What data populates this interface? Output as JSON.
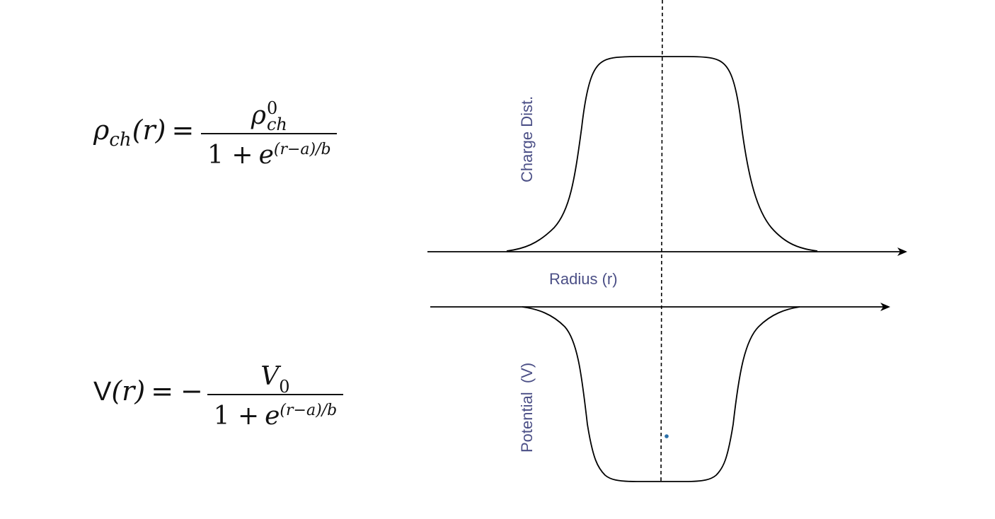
{
  "formulas": {
    "charge": {
      "lhs_symbol": "ρ",
      "lhs_subscript": "ch",
      "lhs_argument": "(r)",
      "equals": "=",
      "numerator_symbol": "ρ",
      "numerator_superscript": "0",
      "numerator_subscript": "ch",
      "denominator_one_plus": "1 +",
      "denominator_base": "e",
      "denominator_exponent": "(r−a)/b"
    },
    "potential": {
      "lhs_symbol": "V",
      "lhs_argument": "(r)",
      "equals": "=",
      "minus": "−",
      "numerator_symbol": "V",
      "numerator_subscript": "0",
      "denominator_one_plus": "1 +",
      "denominator_base": "e",
      "denominator_exponent": "(r−a)/b"
    }
  },
  "diagram": {
    "upper_curve_label": "Charge Dist.",
    "middle_axis_label": "Radius (r)",
    "lower_curve_label": "Potential  (V)",
    "label_color": "#4b4f86",
    "line_color": "#000000",
    "marker_color": "#2b6fa8"
  }
}
